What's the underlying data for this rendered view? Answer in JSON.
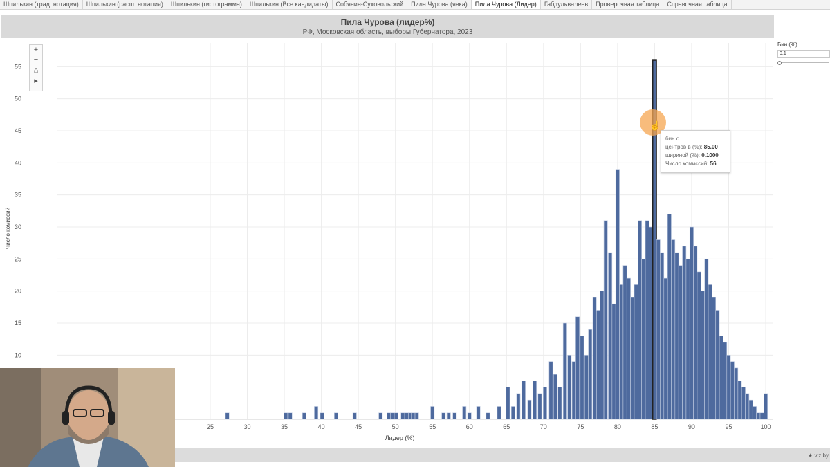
{
  "tabs": [
    {
      "label": "Шпилькин (трад. нотация)",
      "active": false
    },
    {
      "label": "Шпилькин (расш. нотация)",
      "active": false
    },
    {
      "label": "Шпилькин (гистограмма)",
      "active": false
    },
    {
      "label": "Шпилькин (Все кандидаты)",
      "active": false
    },
    {
      "label": "Собянин-Суховольский",
      "active": false
    },
    {
      "label": "Пила Чурова (явка)",
      "active": false
    },
    {
      "label": "Пила Чурова (Лидер)",
      "active": true
    },
    {
      "label": "Габдульвалеев",
      "active": false
    },
    {
      "label": "Проверочная таблица",
      "active": false
    },
    {
      "label": "Справочная таблица",
      "active": false
    }
  ],
  "zoom_controls": {
    "zoom_in": "+",
    "zoom_out": "−",
    "home": "⌂",
    "pan": "▸"
  },
  "side_panel": {
    "title": "Бин (%)",
    "value": "0.1"
  },
  "tooltip": {
    "line1": "бин с",
    "center_label": "центров в (%):",
    "center_value": "85.00",
    "width_label": "шириной (%):",
    "width_value": "0.1000",
    "count_label": "Число комиссий:",
    "count_value": "56"
  },
  "footer": {
    "viz_label": "★ viz by"
  },
  "colors": {
    "bar": "#4e6a9e",
    "bar_stroke": "#c5d0e4",
    "highlight_stroke": "#222222",
    "header_bg": "#d9d9d9",
    "cursor_halo": "#f5a650"
  },
  "chart_data": {
    "type": "bar",
    "title": "Пила Чурова (лидер%)",
    "subtitle": "РФ, Московская область, выборы Губернатора, 2023",
    "xlabel": "Лидер (%)",
    "ylabel": "Число комиссий",
    "xlim": [
      20,
      100.5
    ],
    "ylim": [
      0,
      59
    ],
    "x_ticks": [
      25,
      30,
      35,
      40,
      45,
      50,
      55,
      60,
      65,
      70,
      75,
      80,
      85,
      90,
      95,
      100
    ],
    "y_ticks": [
      10,
      15,
      20,
      25,
      30,
      35,
      40,
      45,
      50,
      55
    ],
    "grid": true,
    "bin_width": 0.1,
    "highlight_bin": 85.0,
    "bins": [
      {
        "x": 27.3,
        "y": 1
      },
      {
        "x": 35.2,
        "y": 1
      },
      {
        "x": 35.8,
        "y": 1
      },
      {
        "x": 37.7,
        "y": 1
      },
      {
        "x": 39.3,
        "y": 2
      },
      {
        "x": 40.1,
        "y": 1
      },
      {
        "x": 42.0,
        "y": 1
      },
      {
        "x": 44.5,
        "y": 1
      },
      {
        "x": 48.0,
        "y": 1
      },
      {
        "x": 49.1,
        "y": 1
      },
      {
        "x": 49.6,
        "y": 1
      },
      {
        "x": 50.1,
        "y": 1
      },
      {
        "x": 51.0,
        "y": 1
      },
      {
        "x": 51.5,
        "y": 1
      },
      {
        "x": 52.0,
        "y": 1
      },
      {
        "x": 52.4,
        "y": 1
      },
      {
        "x": 52.9,
        "y": 1
      },
      {
        "x": 55.0,
        "y": 2
      },
      {
        "x": 56.5,
        "y": 1
      },
      {
        "x": 57.2,
        "y": 1
      },
      {
        "x": 58.0,
        "y": 1
      },
      {
        "x": 59.3,
        "y": 2
      },
      {
        "x": 60.0,
        "y": 1
      },
      {
        "x": 61.2,
        "y": 2
      },
      {
        "x": 62.5,
        "y": 1
      },
      {
        "x": 64.0,
        "y": 2
      },
      {
        "x": 65.2,
        "y": 5
      },
      {
        "x": 65.9,
        "y": 2
      },
      {
        "x": 66.6,
        "y": 4
      },
      {
        "x": 67.3,
        "y": 6
      },
      {
        "x": 68.1,
        "y": 3
      },
      {
        "x": 68.8,
        "y": 6
      },
      {
        "x": 69.5,
        "y": 4
      },
      {
        "x": 70.2,
        "y": 5
      },
      {
        "x": 71.0,
        "y": 9
      },
      {
        "x": 71.6,
        "y": 7
      },
      {
        "x": 72.2,
        "y": 5
      },
      {
        "x": 72.9,
        "y": 15
      },
      {
        "x": 73.5,
        "y": 10
      },
      {
        "x": 74.1,
        "y": 9
      },
      {
        "x": 74.6,
        "y": 16
      },
      {
        "x": 75.2,
        "y": 13
      },
      {
        "x": 75.8,
        "y": 10
      },
      {
        "x": 76.3,
        "y": 14
      },
      {
        "x": 76.9,
        "y": 19
      },
      {
        "x": 77.4,
        "y": 17
      },
      {
        "x": 77.9,
        "y": 20
      },
      {
        "x": 78.4,
        "y": 31
      },
      {
        "x": 79.0,
        "y": 26
      },
      {
        "x": 79.5,
        "y": 18
      },
      {
        "x": 80.0,
        "y": 39
      },
      {
        "x": 80.5,
        "y": 21
      },
      {
        "x": 81.0,
        "y": 24
      },
      {
        "x": 81.5,
        "y": 22
      },
      {
        "x": 82.0,
        "y": 19
      },
      {
        "x": 82.5,
        "y": 21
      },
      {
        "x": 83.0,
        "y": 31
      },
      {
        "x": 83.5,
        "y": 25
      },
      {
        "x": 84.0,
        "y": 31
      },
      {
        "x": 84.5,
        "y": 30
      },
      {
        "x": 85.0,
        "y": 56
      },
      {
        "x": 85.5,
        "y": 28
      },
      {
        "x": 86.0,
        "y": 26
      },
      {
        "x": 86.5,
        "y": 22
      },
      {
        "x": 87.0,
        "y": 32
      },
      {
        "x": 87.5,
        "y": 28
      },
      {
        "x": 88.0,
        "y": 26
      },
      {
        "x": 88.5,
        "y": 24
      },
      {
        "x": 89.0,
        "y": 27
      },
      {
        "x": 89.5,
        "y": 25
      },
      {
        "x": 90.0,
        "y": 30
      },
      {
        "x": 90.5,
        "y": 27
      },
      {
        "x": 91.0,
        "y": 23
      },
      {
        "x": 91.5,
        "y": 20
      },
      {
        "x": 92.0,
        "y": 25
      },
      {
        "x": 92.5,
        "y": 21
      },
      {
        "x": 93.0,
        "y": 19
      },
      {
        "x": 93.5,
        "y": 17
      },
      {
        "x": 94.0,
        "y": 13
      },
      {
        "x": 94.5,
        "y": 12
      },
      {
        "x": 95.0,
        "y": 10
      },
      {
        "x": 95.5,
        "y": 9
      },
      {
        "x": 96.0,
        "y": 8
      },
      {
        "x": 96.5,
        "y": 6
      },
      {
        "x": 97.0,
        "y": 5
      },
      {
        "x": 97.5,
        "y": 4
      },
      {
        "x": 98.0,
        "y": 3
      },
      {
        "x": 98.5,
        "y": 2
      },
      {
        "x": 99.0,
        "y": 1
      },
      {
        "x": 99.5,
        "y": 1
      },
      {
        "x": 100.0,
        "y": 4
      }
    ]
  }
}
